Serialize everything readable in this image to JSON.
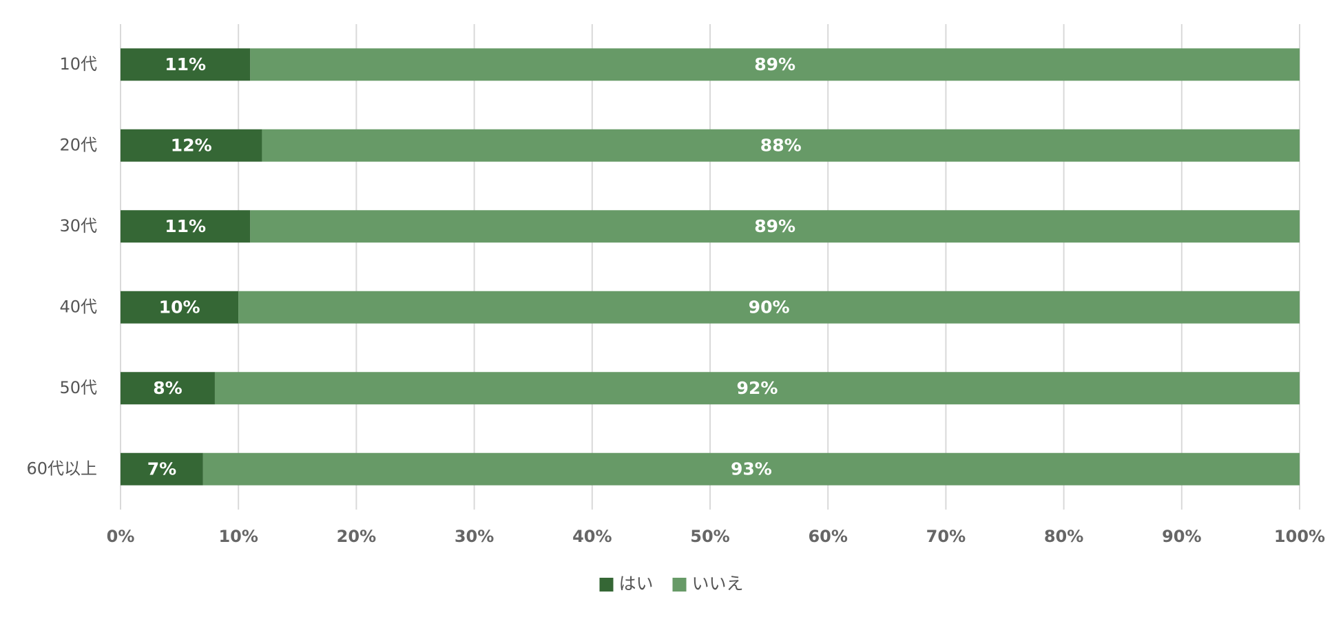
{
  "chart_data": {
    "type": "stacked-bar-horizontal",
    "categories": [
      "10代",
      "20代",
      "30代",
      "40代",
      "50代",
      "60代以上"
    ],
    "series": [
      {
        "name": "はい",
        "color": "#356735",
        "values": [
          11,
          12,
          11,
          10,
          8,
          7
        ],
        "value_labels": [
          "11%",
          "12%",
          "11%",
          "10%",
          "8%",
          "7%"
        ]
      },
      {
        "name": "いいえ",
        "color": "#679a67",
        "values": [
          89,
          88,
          89,
          90,
          92,
          93
        ],
        "value_labels": [
          "89%",
          "88%",
          "89%",
          "90%",
          "92%",
          "93%"
        ]
      }
    ],
    "xlim": [
      0,
      100
    ],
    "xticks": [
      {
        "value": 0,
        "label": "0%"
      },
      {
        "value": 10,
        "label": "10%"
      },
      {
        "value": 20,
        "label": "20%"
      },
      {
        "value": 30,
        "label": "30%"
      },
      {
        "value": 40,
        "label": "40%"
      },
      {
        "value": 50,
        "label": "50%"
      },
      {
        "value": 60,
        "label": "60%"
      },
      {
        "value": 70,
        "label": "70%"
      },
      {
        "value": 80,
        "label": "80%"
      },
      {
        "value": 90,
        "label": "90%"
      },
      {
        "value": 100,
        "label": "100%"
      }
    ],
    "grid": true,
    "legend": "bottom"
  }
}
